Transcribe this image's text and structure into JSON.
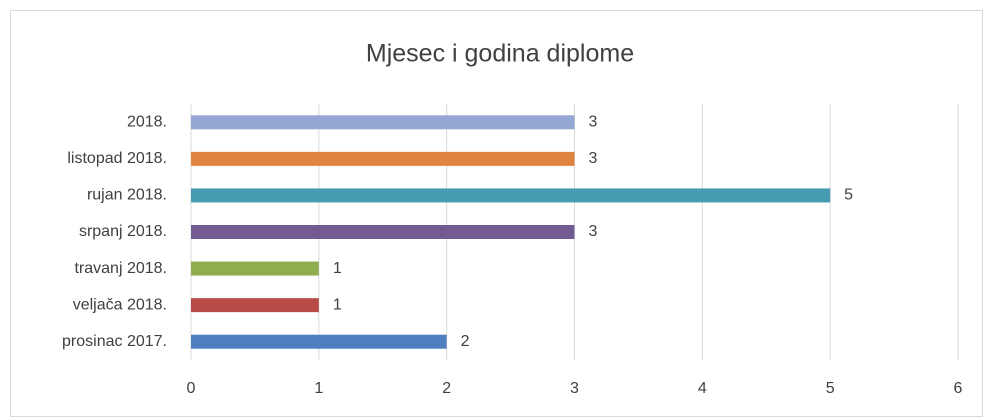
{
  "chart_data": {
    "type": "bar",
    "orientation": "horizontal",
    "title": "Mjesec i godina diplome",
    "categories": [
      "prosinac 2017.",
      "veljača 2018.",
      "travanj 2018.",
      "srpanj 2018.",
      "rujan 2018.",
      "listopad 2018.",
      "2018."
    ],
    "values": [
      2,
      1,
      1,
      3,
      5,
      3,
      3
    ],
    "colors": [
      "#4f7fc0",
      "#b84b47",
      "#8fad4f",
      "#725a93",
      "#459bb0",
      "#e0853f",
      "#95a8d3"
    ],
    "xlim": [
      0,
      6
    ],
    "xticks": [
      0,
      1,
      2,
      3,
      4,
      5,
      6
    ],
    "grid": true
  }
}
